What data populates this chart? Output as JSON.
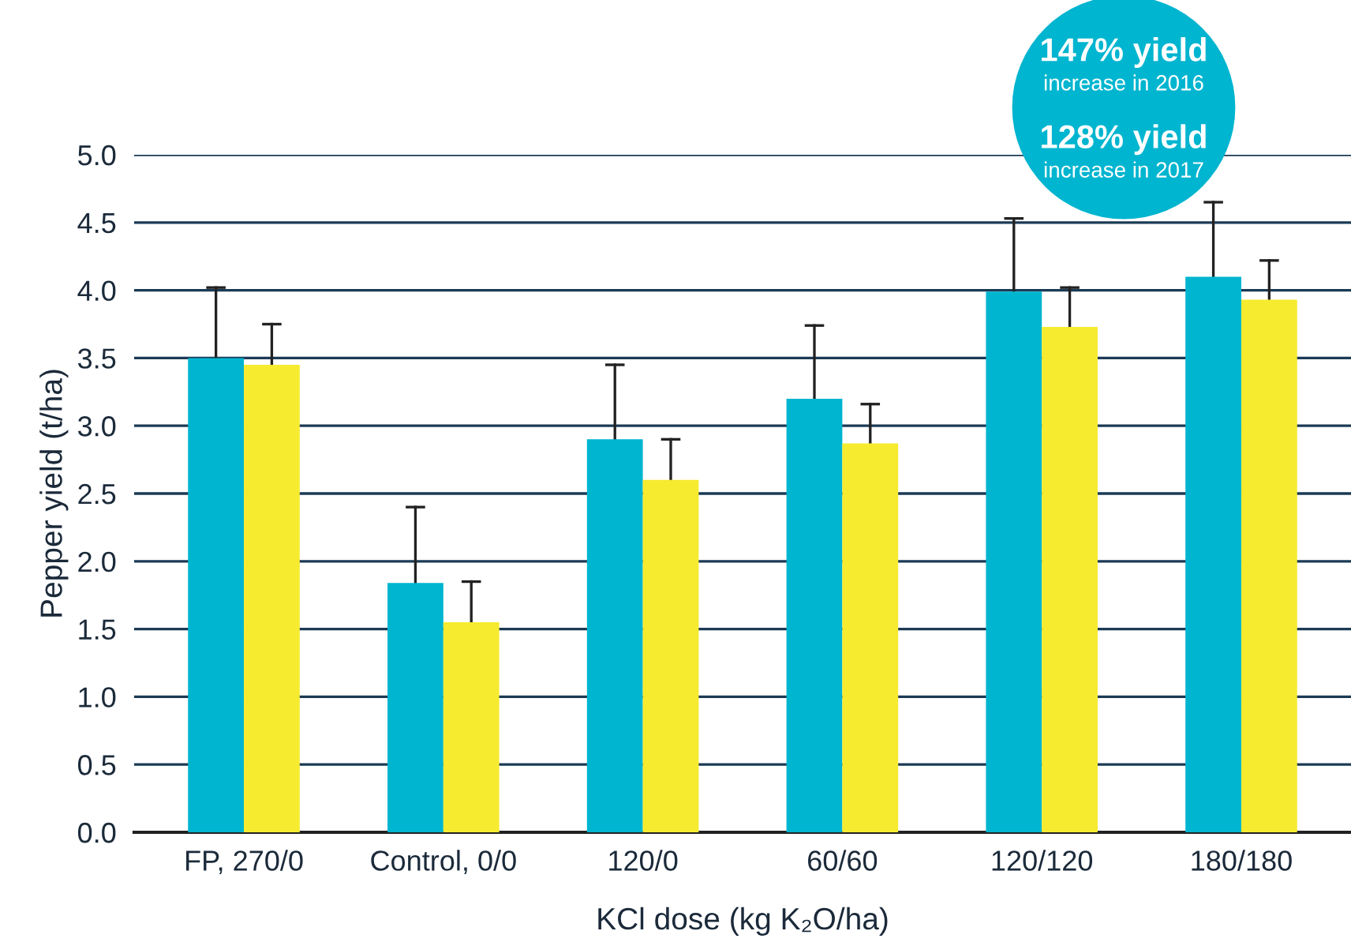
{
  "chart_data": {
    "type": "bar",
    "categories": [
      "FP, 270/0",
      "Control, 0/0",
      "120/0",
      "60/60",
      "120/120",
      "180/180"
    ],
    "series": [
      {
        "color": "#00b5d0",
        "values": [
          3.5,
          1.84,
          2.9,
          3.2,
          3.99,
          4.1
        ],
        "errors": [
          [
            3.5,
            4.02
          ],
          [
            1.84,
            2.4
          ],
          [
            2.9,
            3.45
          ],
          [
            3.2,
            3.74
          ],
          [
            3.99,
            4.53
          ],
          [
            4.1,
            4.65
          ]
        ]
      },
      {
        "color": "#f6eb2f",
        "values": [
          3.45,
          1.55,
          2.6,
          2.87,
          3.73,
          3.93
        ],
        "errors": [
          [
            3.45,
            3.75
          ],
          [
            1.55,
            1.85
          ],
          [
            2.6,
            2.9
          ],
          [
            2.87,
            3.16
          ],
          [
            3.73,
            4.02
          ],
          [
            3.93,
            4.22
          ]
        ]
      }
    ],
    "ylabel": "Pepper yield (t/ha)",
    "xlabel": "KCl dose (kg K₂O/ha)",
    "ylim": [
      0,
      5.0
    ],
    "yticks": [
      {
        "value": 0,
        "label": "0.0"
      },
      {
        "value": 0.5,
        "label": "0.5"
      },
      {
        "value": 1,
        "label": "1.0"
      },
      {
        "value": 1.5,
        "label": "1.5"
      },
      {
        "value": 2,
        "label": "2.0"
      },
      {
        "value": 2.5,
        "label": "2.5"
      },
      {
        "value": 3,
        "label": "3.0"
      },
      {
        "value": 3.5,
        "label": "3.5"
      },
      {
        "value": 4,
        "label": "4.0"
      },
      {
        "value": 4.5,
        "label": "4.5"
      },
      {
        "value": 5,
        "label": "5.0"
      }
    ],
    "grid": "y",
    "annotations": [
      "147% yield increase in 2016",
      "128% yield increase in 2017"
    ]
  }
}
